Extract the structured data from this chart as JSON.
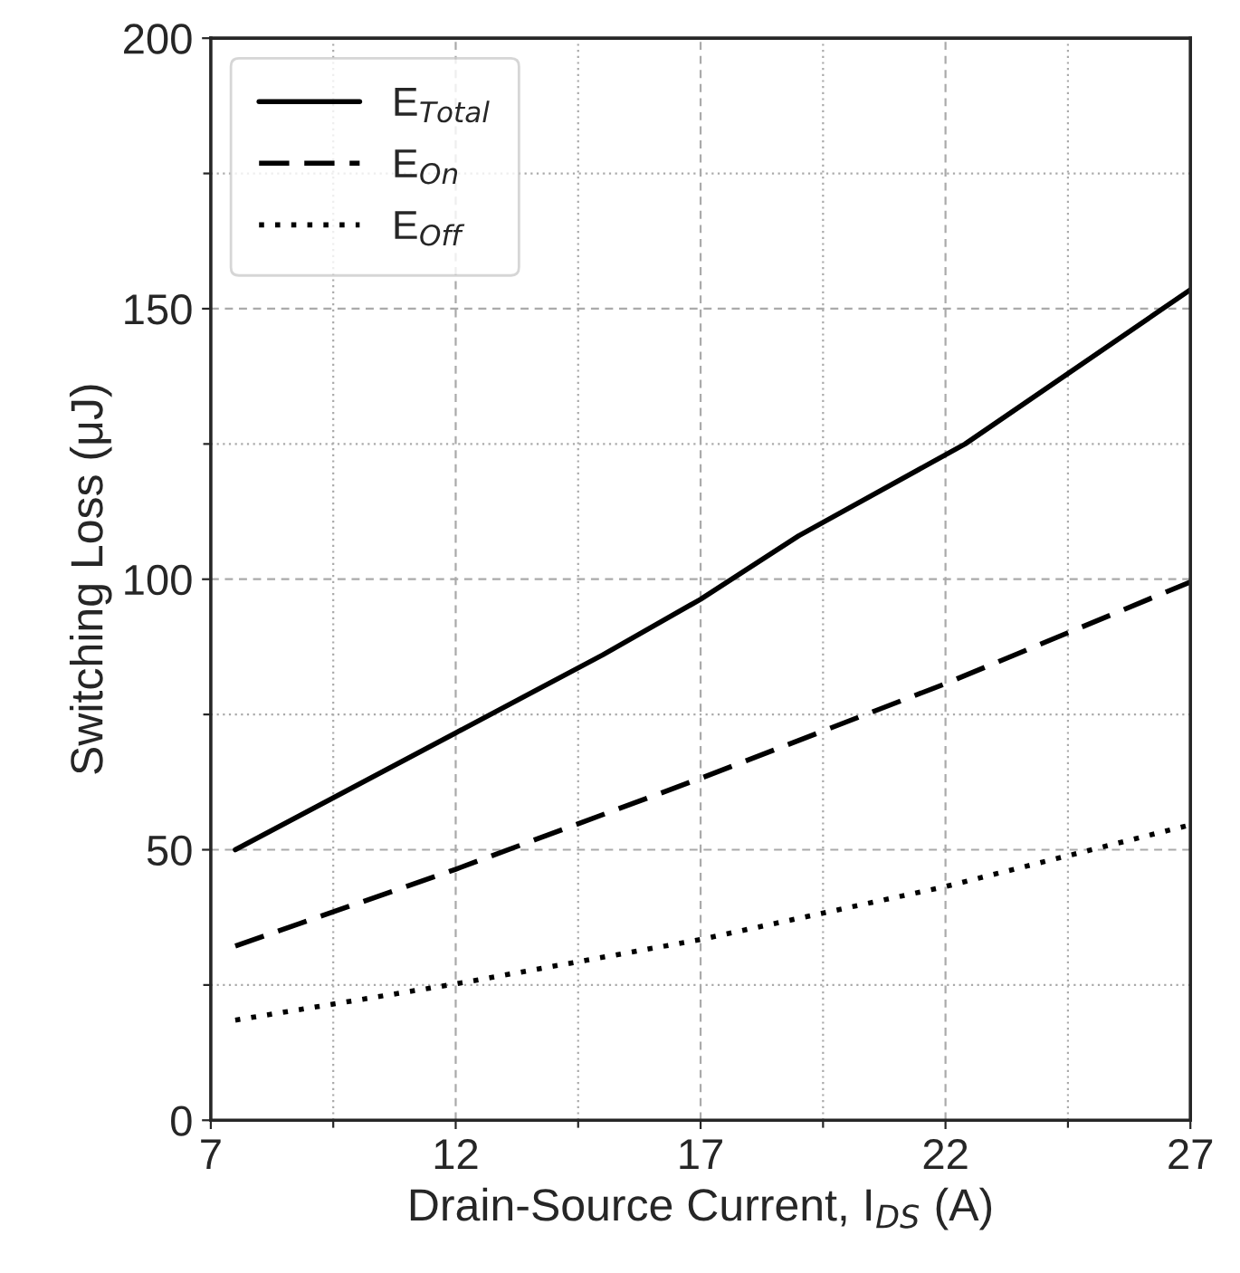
{
  "chart_data": {
    "type": "line",
    "xlabel": "Drain-Source Current, I$_{DS}$ (A)",
    "ylabel": "Switching Loss (μJ)",
    "xlim": [
      7,
      27
    ],
    "xticks": [
      7,
      {
        "value": 9.5,
        "label": null
      },
      12,
      {
        "value": 14.5,
        "label": null
      },
      17,
      {
        "value": 19.5,
        "label": null
      },
      22,
      {
        "value": 24.5,
        "label": null
      },
      27
    ],
    "ylim": [
      0,
      200
    ],
    "yticks": [
      0,
      {
        "value": 25,
        "label": null
      },
      50,
      {
        "value": 75,
        "label": null
      },
      100,
      {
        "value": 125,
        "label": null
      },
      150,
      {
        "value": 175,
        "label": null
      },
      200
    ],
    "grid": true,
    "legend": "top left",
    "marker": "none",
    "series": [
      {
        "name": "E$_{Total}$",
        "color": "#000000",
        "line_style": "solid",
        "x": [
          7.5,
          12,
          15,
          17,
          19,
          22.4,
          27
        ],
        "values": [
          50,
          71.6,
          86,
          96.3,
          108,
          125,
          153.5
        ]
      },
      {
        "name": "E$_{On}$",
        "color": "#000000",
        "line_style": "dashed",
        "x": [
          7.5,
          12,
          17,
          22,
          27
        ],
        "values": [
          32.2,
          46.4,
          63.2,
          80.7,
          99.5
        ]
      },
      {
        "name": "E$_{Off}$",
        "color": "#000000",
        "line_style": "dotted",
        "x": [
          7.5,
          12,
          17,
          22,
          27
        ],
        "values": [
          18.5,
          25.2,
          33.4,
          43.2,
          54.6
        ]
      }
    ]
  }
}
